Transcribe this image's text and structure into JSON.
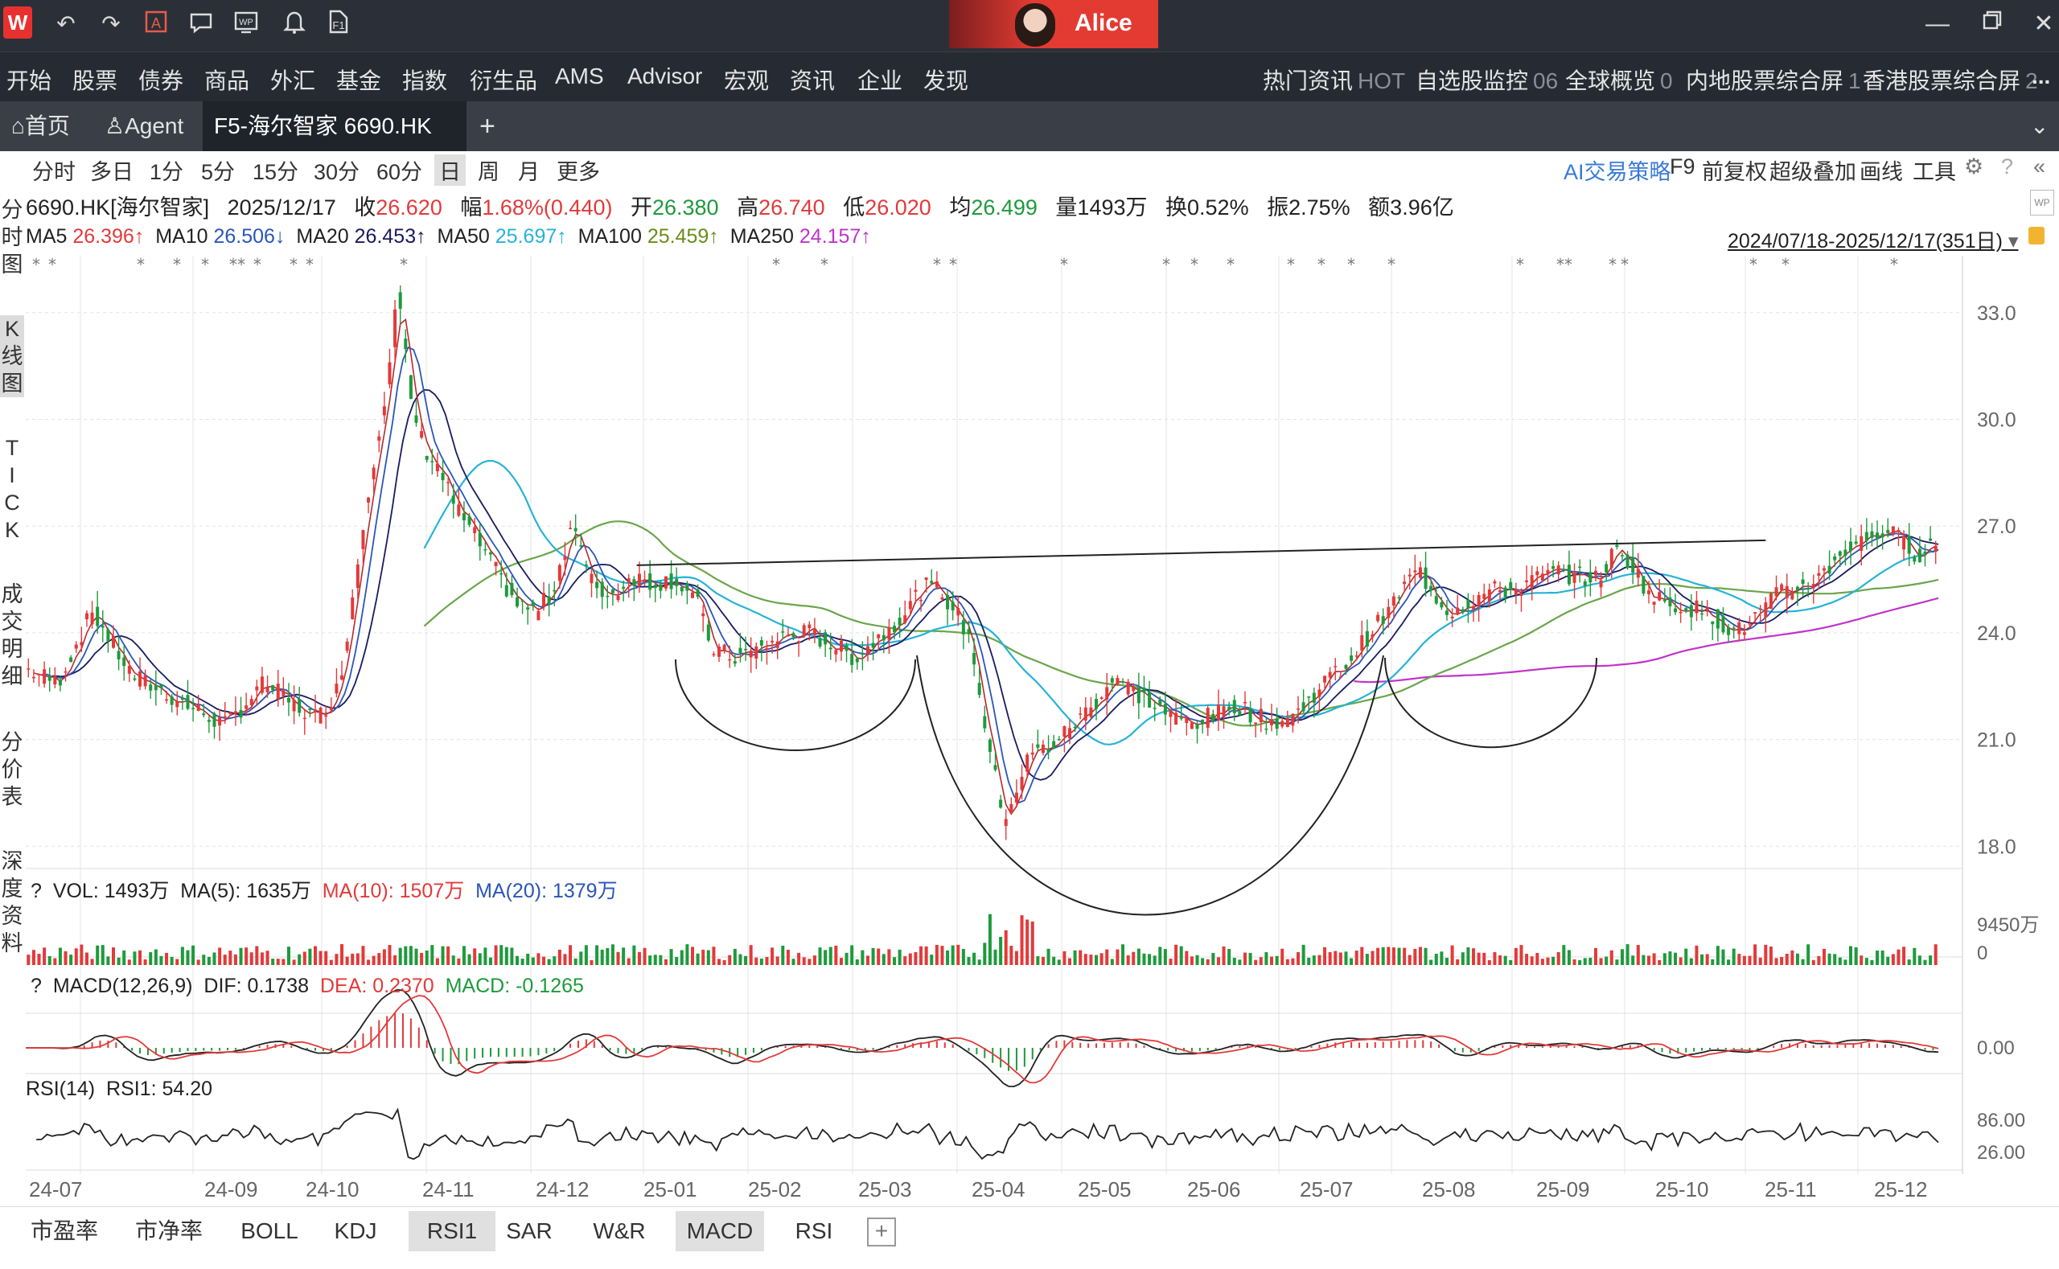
{
  "titlebar": {
    "logo": "W",
    "user_name": "Alice",
    "icons": [
      "undo-icon",
      "redo-icon",
      "ai-text-icon",
      "chat-icon",
      "wp-icon",
      "bell-icon",
      "f1-help-icon"
    ]
  },
  "menubar": {
    "items": [
      "开始",
      "股票",
      "债券",
      "商品",
      "外汇",
      "基金",
      "指数",
      "衍生品",
      "AMS",
      "Advisor",
      "宏观",
      "资讯",
      "企业",
      "发现"
    ],
    "right": [
      {
        "label": "热门资讯",
        "count": "HOT"
      },
      {
        "label": "自选股监控",
        "count": "06"
      },
      {
        "label": "全球概览",
        "count": "0"
      },
      {
        "label": "内地股票综合屏",
        "count": "1"
      },
      {
        "label": "香港股票综合屏",
        "count": "2"
      }
    ],
    "more": "..."
  },
  "tabbar": {
    "home": "首页",
    "agent": "Agent",
    "active": "F5-海尔智家 6690.HK",
    "add": "+",
    "dropdown": "⌄"
  },
  "toolbar": {
    "periods": [
      "分时",
      "多日",
      "1分",
      "5分",
      "15分",
      "30分",
      "60分",
      "日",
      "周",
      "月",
      "更多"
    ],
    "selected": "日",
    "right": [
      "AI交易策略",
      "F9",
      "前复权",
      "超级叠加",
      "画线",
      "工具"
    ]
  },
  "sidebar": {
    "groups": [
      [
        "分",
        "时",
        "图"
      ],
      [
        "K",
        "线",
        "图"
      ],
      [
        "T",
        "I",
        "C",
        "K"
      ],
      [
        "成",
        "交",
        "明",
        "细"
      ],
      [
        "分",
        "价",
        "表"
      ],
      [
        "深",
        "度",
        "资",
        "料"
      ]
    ]
  },
  "quote": {
    "name": "6690.HK[海尔智家]",
    "date": "2025/12/17",
    "close_label": "收",
    "close": "26.620",
    "chg_label": "幅",
    "chg": "1.68%(0.440)",
    "open_label": "开",
    "open": "26.380",
    "high_label": "高",
    "high": "26.740",
    "low_label": "低",
    "low": "26.020",
    "avg_label": "均",
    "avg": "26.499",
    "vol_label": "量",
    "vol": "1493万",
    "turn_label": "换",
    "turn": "0.52%",
    "amp_label": "振",
    "amp": "2.75%",
    "amt_label": "额",
    "amt": "3.96亿"
  },
  "ma_line": {
    "ma5": "MA5",
    "ma5v": "26.396↑",
    "ma10": "MA10",
    "ma10v": "26.506↓",
    "ma20": "MA20",
    "ma20v": "26.453↑",
    "ma50": "MA50",
    "ma50v": "25.697↑",
    "ma100": "MA100",
    "ma100v": "25.459↑",
    "ma250": "MA250",
    "ma250v": "24.157↑",
    "range": "2024/07/18-2025/12/17(351日)"
  },
  "colors": {
    "up": "#e23a3a",
    "down": "#1e9a3c",
    "ma5": "#b8292e",
    "ma10": "#2a56b8",
    "ma20": "#1a1a60",
    "ma50": "#26b3d6",
    "ma100": "#6aa64a",
    "ma250": "#c034c8"
  },
  "vol_panel": {
    "q": "?",
    "label": "VOL: 1493万",
    "ma5": "MA(5): 1635万",
    "ma10": "MA(10): 1507万",
    "ma20": "MA(20): 1379万",
    "axis": [
      "9450万",
      "0"
    ]
  },
  "macd_panel": {
    "q": "?",
    "label": "MACD(12,26,9)",
    "dif": "DIF: 0.1738",
    "dea": "DEA: 0.2370",
    "macd": "MACD: -0.1265",
    "axis": [
      "0.00"
    ]
  },
  "rsi_panel": {
    "label": "RSI(14)",
    "rsi1": "RSI1: 54.20",
    "axis": [
      "86.00",
      "26.00"
    ]
  },
  "bottom_tabs": [
    "市盈率",
    "市净率",
    "BOLL",
    "KDJ",
    "RSI1",
    "SAR",
    "W&R",
    "MACD",
    "RSI",
    "+"
  ],
  "bottom_selected": [
    "RSI1",
    "MACD"
  ],
  "chart_data": {
    "type": "candlestick",
    "title": "6690.HK 海尔智家 日K",
    "y_axis": [
      "33.0",
      "30.0",
      "27.0",
      "24.0",
      "21.0",
      "18.0"
    ],
    "ylim": [
      17.6,
      34.6
    ],
    "x_labels": [
      "24-07",
      "24-09",
      "24-10",
      "24-11",
      "24-12",
      "25-01",
      "25-02",
      "25-03",
      "25-04",
      "25-05",
      "25-06",
      "25-07",
      "25-08",
      "25-09",
      "25-10",
      "25-11",
      "25-12"
    ],
    "price_path": [
      [
        0,
        23.0
      ],
      [
        12,
        22.6
      ],
      [
        25,
        24.6
      ],
      [
        40,
        22.8
      ],
      [
        60,
        22.0
      ],
      [
        75,
        21.4
      ],
      [
        90,
        22.6
      ],
      [
        100,
        22.0
      ],
      [
        110,
        21.6
      ],
      [
        118,
        22.5
      ],
      [
        125,
        26.0
      ],
      [
        130,
        28.5
      ],
      [
        136,
        31.0
      ],
      [
        140,
        33.6
      ],
      [
        145,
        30.5
      ],
      [
        150,
        29.2
      ],
      [
        155,
        28.7
      ],
      [
        162,
        27.5
      ],
      [
        170,
        26.6
      ],
      [
        178,
        25.6
      ],
      [
        185,
        24.8
      ],
      [
        192,
        24.6
      ],
      [
        198,
        25.1
      ],
      [
        206,
        27.2
      ],
      [
        212,
        25.5
      ],
      [
        220,
        25.0
      ],
      [
        228,
        25.6
      ],
      [
        236,
        25.4
      ],
      [
        244,
        25.5
      ],
      [
        252,
        25.0
      ],
      [
        258,
        23.6
      ],
      [
        266,
        23.3
      ],
      [
        275,
        23.5
      ],
      [
        285,
        23.9
      ],
      [
        295,
        24.0
      ],
      [
        305,
        23.6
      ],
      [
        312,
        23.3
      ],
      [
        320,
        23.8
      ],
      [
        330,
        24.5
      ],
      [
        338,
        25.3
      ],
      [
        344,
        25.2
      ],
      [
        350,
        24.6
      ],
      [
        356,
        23.7
      ],
      [
        362,
        21.0
      ],
      [
        368,
        18.8
      ],
      [
        373,
        19.6
      ],
      [
        378,
        20.6
      ],
      [
        386,
        20.8
      ],
      [
        394,
        21.4
      ],
      [
        402,
        22.0
      ],
      [
        410,
        22.8
      ],
      [
        416,
        22.4
      ],
      [
        424,
        22.0
      ],
      [
        432,
        21.6
      ],
      [
        440,
        21.5
      ],
      [
        448,
        21.7
      ],
      [
        456,
        22.0
      ],
      [
        464,
        21.6
      ],
      [
        472,
        21.5
      ],
      [
        480,
        21.8
      ],
      [
        488,
        22.6
      ],
      [
        496,
        23.0
      ],
      [
        504,
        23.8
      ],
      [
        512,
        24.5
      ],
      [
        518,
        25.2
      ],
      [
        524,
        25.8
      ],
      [
        530,
        25.1
      ],
      [
        536,
        24.6
      ],
      [
        544,
        24.9
      ],
      [
        552,
        25.2
      ],
      [
        560,
        25.2
      ],
      [
        568,
        25.5
      ],
      [
        576,
        25.7
      ],
      [
        584,
        25.6
      ],
      [
        592,
        25.5
      ],
      [
        598,
        26.3
      ],
      [
        604,
        26.0
      ],
      [
        612,
        25.0
      ],
      [
        620,
        24.8
      ],
      [
        628,
        24.7
      ],
      [
        636,
        24.4
      ],
      [
        644,
        24.0
      ],
      [
        652,
        24.5
      ],
      [
        660,
        25.1
      ],
      [
        668,
        25.3
      ],
      [
        676,
        25.6
      ],
      [
        684,
        26.3
      ],
      [
        692,
        26.6
      ],
      [
        700,
        26.9
      ],
      [
        706,
        26.6
      ],
      [
        712,
        26.2
      ],
      [
        720,
        26.6
      ]
    ],
    "resistance_line": [
      [
        230,
        25.9
      ],
      [
        655,
        26.6
      ]
    ],
    "patterns": [
      "cup-left",
      "big-cup",
      "cup-right"
    ]
  }
}
